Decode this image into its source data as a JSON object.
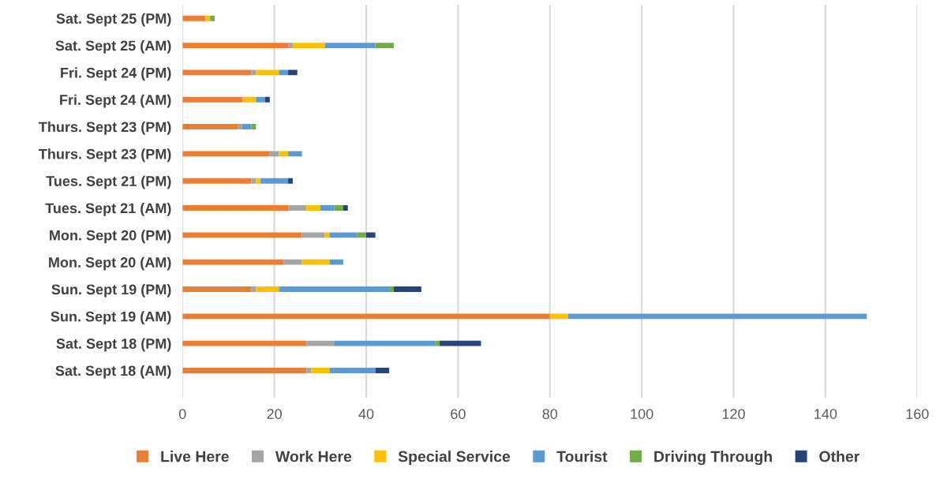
{
  "chart_data": {
    "type": "bar",
    "orientation": "horizontal",
    "stacked": true,
    "categories": [
      "Sat. Sept 25 (PM)",
      "Sat. Sept 25 (AM)",
      "Fri. Sept 24 (PM)",
      "Fri. Sept 24 (AM)",
      "Thurs. Sept 23 (PM)",
      "Thurs. Sept 23 (PM)",
      "Tues. Sept 21 (PM)",
      "Tues. Sept 21 (AM)",
      "Mon. Sept 20 (PM)",
      "Mon. Sept 20 (AM)",
      "Sun. Sept 19 (PM)",
      "Sun. Sept 19 (AM)",
      "Sat. Sept 18 (PM)",
      "Sat. Sept 18 (AM)"
    ],
    "series": [
      {
        "name": "Live Here",
        "color": "#ed7d31",
        "values": [
          5,
          23,
          15,
          13,
          12,
          19,
          15,
          23,
          26,
          22,
          15,
          80,
          27,
          27
        ]
      },
      {
        "name": "Work Here",
        "color": "#a5a5a5",
        "values": [
          0,
          1,
          1,
          0,
          1,
          2,
          1,
          4,
          5,
          4,
          1,
          0,
          6,
          1
        ]
      },
      {
        "name": "Special Service",
        "color": "#ffc000",
        "values": [
          1,
          7,
          5,
          3,
          0,
          2,
          1,
          3,
          1,
          6,
          5,
          4,
          0,
          4
        ]
      },
      {
        "name": "Tourist",
        "color": "#5b9bd5",
        "values": [
          0,
          11,
          2,
          2,
          2,
          3,
          6,
          3,
          6,
          3,
          24,
          65,
          22,
          10
        ]
      },
      {
        "name": "Driving Through",
        "color": "#70ad47",
        "values": [
          1,
          4,
          0,
          0,
          1,
          0,
          0,
          2,
          2,
          0,
          1,
          0,
          1,
          0
        ]
      },
      {
        "name": "Other",
        "color": "#264478",
        "values": [
          0,
          0,
          2,
          1,
          0,
          0,
          1,
          1,
          2,
          0,
          6,
          0,
          9,
          3
        ]
      }
    ],
    "xlim": [
      0,
      160
    ],
    "xticks": [
      0,
      20,
      40,
      60,
      80,
      100,
      120,
      140,
      160
    ],
    "grid": "x",
    "legend": "bottom"
  }
}
